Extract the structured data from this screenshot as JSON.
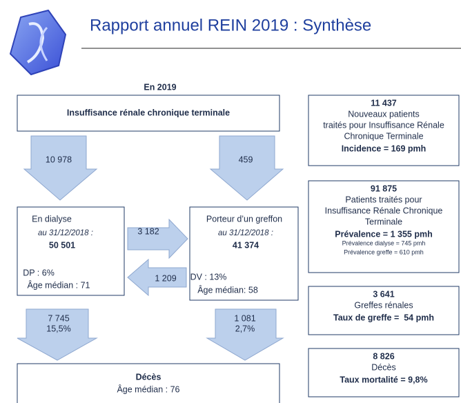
{
  "header": {
    "title": "Rapport annuel REIN 2019 : Synthèse"
  },
  "flow": {
    "year": "En 2019",
    "source": "Insuffisance rénale chronique terminale",
    "arrows": {
      "to_dialysis": "10 978",
      "to_transplant": "459",
      "dialysis_to_transplant": "3 182",
      "transplant_to_dialysis": "1 209",
      "dialysis_deaths": [
        "7 745",
        "15,5%"
      ],
      "transplant_deaths": [
        "1 081",
        "2,7%"
      ]
    },
    "dialysis": {
      "title": "En dialyse",
      "date": "au 31/12/2018 :",
      "count": "50 501",
      "detail": "DP : 6%",
      "age": "Âge médian : 71"
    },
    "transplant": {
      "title": "Porteur d’un greffon",
      "date": "au 31/12/2018 :",
      "count": "41 374",
      "detail": "DV : 13%",
      "age": "Âge médian: 58"
    },
    "deaths": {
      "title": "Décès",
      "age": "Âge médian : 76"
    }
  },
  "summary": [
    {
      "count": "11 437",
      "lines": [
        "Nouveaux patients",
        "traités pour Insuffisance Rénale",
        "Chronique Terminale"
      ],
      "rate": "Incidence = 169 pmh"
    },
    {
      "count": "91 875",
      "lines": [
        "Patients traités pour",
        "Insuffisance Rénale Chronique",
        "Terminale"
      ],
      "rate": "Prévalence = 1 355 pmh",
      "notes": [
        "Prévalence dialyse = 745 pmh",
        "Prévalence greffe = 610 pmh"
      ]
    },
    {
      "count": "3 641",
      "lines": [
        "Greffes rénales"
      ],
      "rate": "Taux de greffe =  54 pmh"
    },
    {
      "count": "8 826",
      "lines": [
        "Décès"
      ],
      "rate": "Taux mortalité = 9,8%"
    }
  ]
}
